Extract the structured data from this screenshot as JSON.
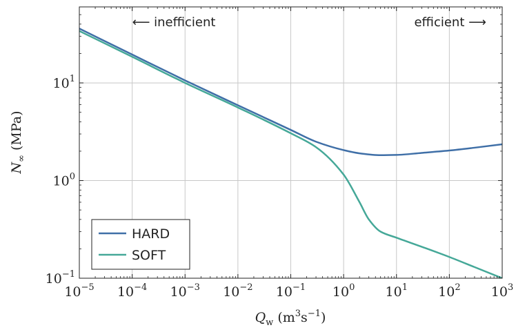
{
  "chart_data": {
    "type": "line",
    "xscale": "log",
    "yscale": "log",
    "xlim": [
      1e-05,
      1000
    ],
    "ylim": [
      0.1,
      60
    ],
    "grid": true,
    "legend_position": "bottom-left",
    "xlabel": {
      "base": "Q",
      "sub": "w",
      "unit_pre": " (m",
      "unit_e1": "3",
      "unit_mid": "s",
      "unit_e2": "−1",
      "unit_post": ")"
    },
    "ylabel": {
      "base": "N",
      "sub": "∞",
      "unit": " (MPa)"
    },
    "x_ticks": [
      {
        "value": 1e-05,
        "base": "10",
        "exp": "−5"
      },
      {
        "value": 0.0001,
        "base": "10",
        "exp": "−4"
      },
      {
        "value": 0.001,
        "base": "10",
        "exp": "−3"
      },
      {
        "value": 0.01,
        "base": "10",
        "exp": "−2"
      },
      {
        "value": 0.1,
        "base": "10",
        "exp": "−1"
      },
      {
        "value": 1,
        "base": "10",
        "exp": "0"
      },
      {
        "value": 10,
        "base": "10",
        "exp": "1"
      },
      {
        "value": 100,
        "base": "10",
        "exp": "2"
      },
      {
        "value": 1000,
        "base": "10",
        "exp": "3"
      }
    ],
    "y_ticks": [
      {
        "value": 0.1,
        "base": "10",
        "exp": "−1"
      },
      {
        "value": 1,
        "base": "10",
        "exp": "0"
      },
      {
        "value": 10,
        "base": "10",
        "exp": "1"
      }
    ],
    "annotations": [
      {
        "text": "⟵ inefficient",
        "x": 0.0001,
        "y": 42,
        "anchor": "start"
      },
      {
        "text": "efficient ⟶",
        "x": 500,
        "y": 42,
        "anchor": "end"
      }
    ],
    "series": [
      {
        "name": "HARD",
        "color": "#3f6fa7",
        "points": [
          [
            1e-05,
            36
          ],
          [
            0.0001,
            19.5
          ],
          [
            0.001,
            10.6
          ],
          [
            0.01,
            5.9
          ],
          [
            0.1,
            3.3
          ],
          [
            0.3,
            2.5
          ],
          [
            1,
            2.05
          ],
          [
            2,
            1.9
          ],
          [
            5,
            1.82
          ],
          [
            10,
            1.83
          ],
          [
            30,
            1.92
          ],
          [
            100,
            2.03
          ],
          [
            300,
            2.17
          ],
          [
            1000,
            2.35
          ]
        ]
      },
      {
        "name": "SOFT",
        "color": "#45a898",
        "points": [
          [
            1e-05,
            34
          ],
          [
            0.0001,
            18.5
          ],
          [
            0.001,
            10.0
          ],
          [
            0.01,
            5.6
          ],
          [
            0.1,
            3.05
          ],
          [
            0.3,
            2.2
          ],
          [
            1,
            1.15
          ],
          [
            2,
            0.6
          ],
          [
            3,
            0.4
          ],
          [
            5,
            0.3
          ],
          [
            10,
            0.26
          ],
          [
            30,
            0.21
          ],
          [
            100,
            0.165
          ],
          [
            300,
            0.13
          ],
          [
            1000,
            0.1
          ]
        ]
      }
    ]
  }
}
